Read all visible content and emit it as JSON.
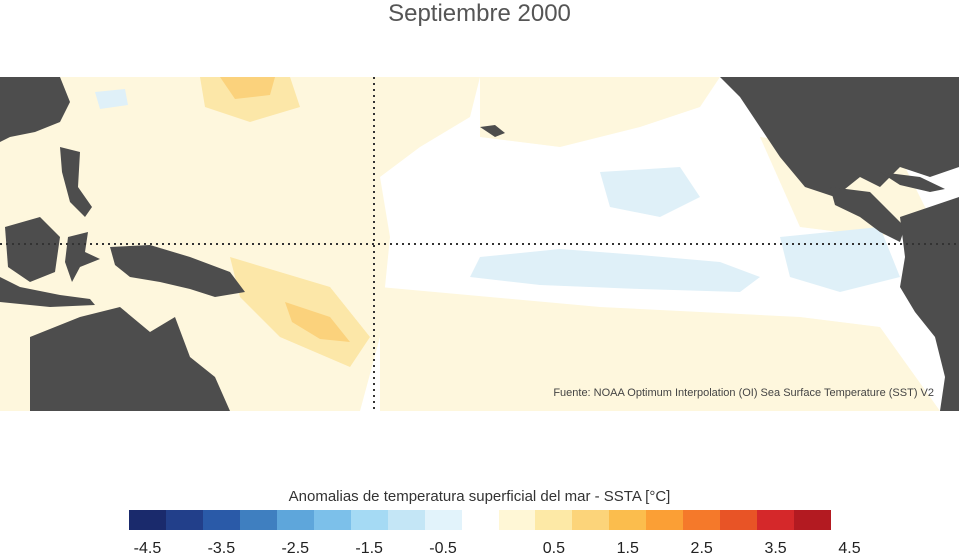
{
  "title": "Septiembre 2000",
  "source": "Fuente: NOAA Optimum Interpolation (OI) Sea Surface Temperature (SST) V2",
  "colorbar": {
    "title": "Anomalias de temperatura superficial del mar - SSTA  [°C]",
    "colors": [
      "#1a2a6c",
      "#223f8a",
      "#2a5aa8",
      "#3f7fc0",
      "#5ea6db",
      "#7cc0ea",
      "#a5daf4",
      "#c4e6f6",
      "#e2f3fb",
      "#ffffff",
      "#fff7d6",
      "#fde9a6",
      "#fcd47a",
      "#fbbd4d",
      "#fb9f35",
      "#f5792a",
      "#e85426",
      "#d5282a",
      "#b31a21"
    ],
    "ticks": [
      "-4.5",
      "-3.5",
      "-2.5",
      "-1.5",
      "-0.5",
      "0.5",
      "1.5",
      "2.5",
      "3.5",
      "4.5"
    ]
  },
  "map": {
    "land_color": "#4d4d4d",
    "warm_light": "#fef7dd",
    "warm_mid": "#fce7a8",
    "warm_strong": "#fbd27c",
    "cool_light": "#dff0f8",
    "grid_line_style": "dotted"
  }
}
